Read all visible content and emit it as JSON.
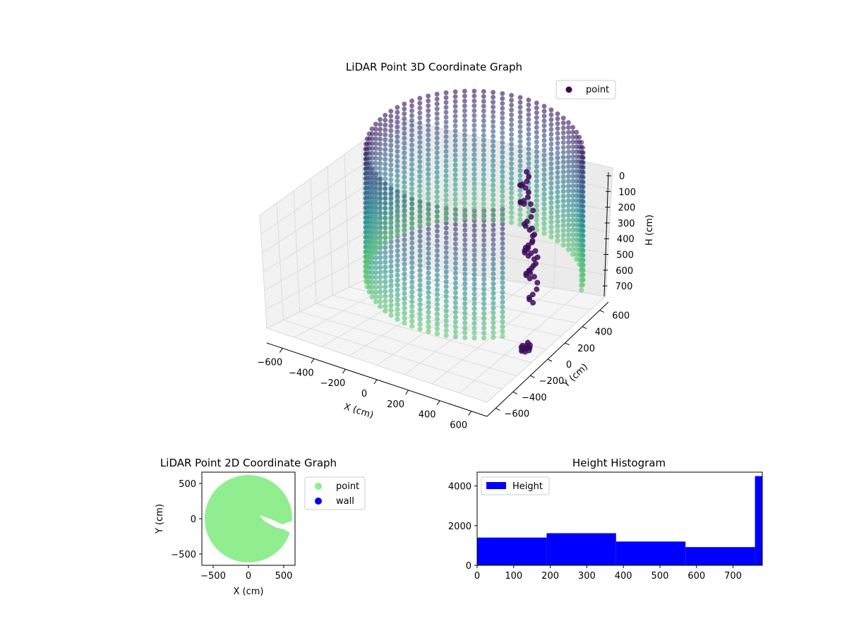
{
  "chart_data": [
    {
      "type": "scatter3d",
      "title": "LiDAR Point 3D Coordinate Graph",
      "xlabel": "X (cm)",
      "ylabel": "Y (cm)",
      "zlabel": "H (cm)",
      "xlim": [
        -700,
        700
      ],
      "ylim": [
        -700,
        700
      ],
      "zlim": [
        0,
        780
      ],
      "z_inverted": true,
      "xticks": [
        -600,
        -400,
        -200,
        0,
        200,
        400,
        600
      ],
      "yticks": [
        -600,
        -400,
        -200,
        0,
        200,
        400,
        600
      ],
      "zticks": [
        0,
        100,
        200,
        300,
        400,
        500,
        600,
        700
      ],
      "legend": {
        "entries": [
          "point"
        ],
        "placement": "top-right"
      },
      "colormap": [
        "#440154",
        "#3b528b",
        "#21918c",
        "#5ec962"
      ],
      "point_color": "#7fc7c9",
      "structure": {
        "shape": "cylinder",
        "radius": 620,
        "height_range": [
          0,
          780
        ],
        "gap_angles_deg": [
          -45,
          15
        ]
      },
      "objects": [
        {
          "x": 260,
          "y": 120,
          "h": [
            120,
            320
          ]
        },
        {
          "x": 380,
          "y": -40,
          "h": [
            200,
            520
          ]
        },
        {
          "x": 470,
          "y": -180,
          "h": [
            250,
            560
          ]
        },
        {
          "x": 560,
          "y": -300,
          "h": [
            300,
            620
          ]
        },
        {
          "x": 660,
          "y": -560,
          "h": [
            700,
            740
          ]
        }
      ],
      "grid": true
    },
    {
      "type": "scatter",
      "title": "LiDAR Point 2D Coordinate Graph",
      "xlabel": "X (cm)",
      "ylabel": "Y (cm)",
      "xlim": [
        -660,
        660
      ],
      "ylim": [
        -660,
        660
      ],
      "xticks": [
        -500,
        0,
        500
      ],
      "yticks": [
        500,
        0,
        -500
      ],
      "series": [
        {
          "name": "point",
          "color": "#90ee90",
          "region": "disk",
          "radius": 620
        },
        {
          "name": "wall",
          "color": "#0000ff",
          "values": []
        }
      ],
      "legend": {
        "placement": "outside-right"
      }
    },
    {
      "type": "bar",
      "title": "Height Histogram",
      "xlim": [
        0,
        780
      ],
      "ylim": [
        0,
        4700
      ],
      "xticks": [
        0,
        100,
        200,
        300,
        400,
        500,
        600,
        700
      ],
      "yticks": [
        0,
        2000,
        4000
      ],
      "bins": [
        {
          "from": 0,
          "to": 190,
          "count": 1400
        },
        {
          "from": 190,
          "to": 380,
          "count": 1620
        },
        {
          "from": 380,
          "to": 570,
          "count": 1200
        },
        {
          "from": 570,
          "to": 760,
          "count": 920
        },
        {
          "from": 760,
          "to": 780,
          "count": 4500
        }
      ],
      "series": [
        {
          "name": "Height",
          "color": "#0000ff"
        }
      ],
      "legend": {
        "placement": "top-left"
      }
    }
  ]
}
